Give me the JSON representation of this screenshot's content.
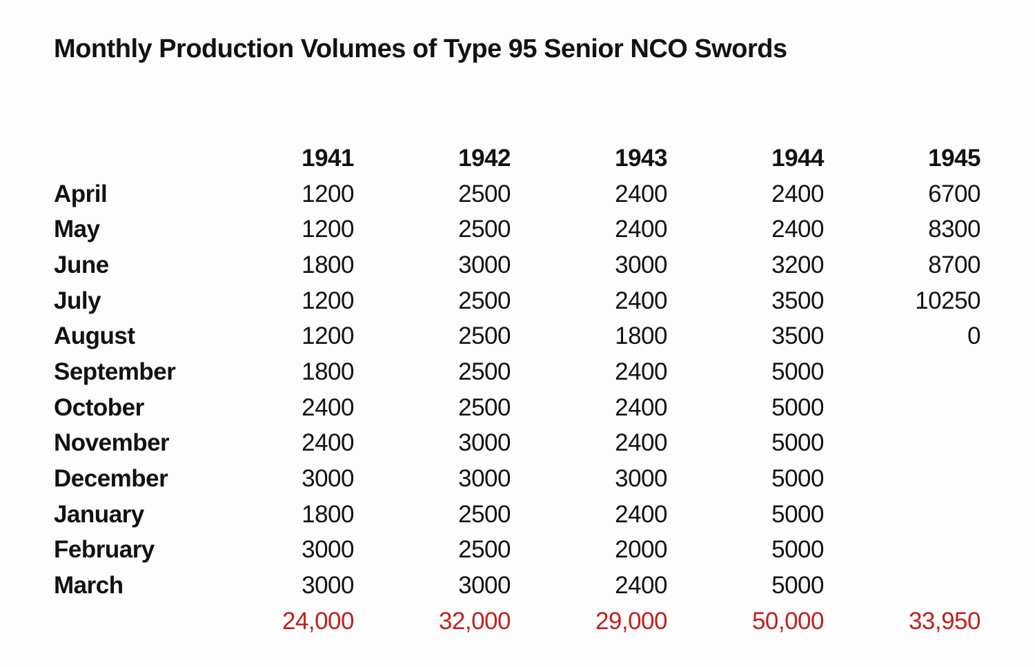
{
  "title": "Monthly Production Volumes of Type 95 Senior NCO Swords",
  "colors": {
    "total_text": "#c1201d",
    "body_text": "#121212",
    "background": "#fdfdfd"
  },
  "table": {
    "year_headers": [
      "1941",
      "1942",
      "1943",
      "1944",
      "1945"
    ],
    "rows": [
      {
        "month": "April",
        "values": [
          "1200",
          "2500",
          "2400",
          "2400",
          "6700"
        ]
      },
      {
        "month": "May",
        "values": [
          "1200",
          "2500",
          "2400",
          "2400",
          "8300"
        ]
      },
      {
        "month": "June",
        "values": [
          "1800",
          "3000",
          "3000",
          "3200",
          "8700"
        ]
      },
      {
        "month": "July",
        "values": [
          "1200",
          "2500",
          "2400",
          "3500",
          "10250"
        ]
      },
      {
        "month": "August",
        "values": [
          "1200",
          "2500",
          "1800",
          "3500",
          "0"
        ]
      },
      {
        "month": "September",
        "values": [
          "1800",
          "2500",
          "2400",
          "5000",
          ""
        ]
      },
      {
        "month": "October",
        "values": [
          "2400",
          "2500",
          "2400",
          "5000",
          ""
        ]
      },
      {
        "month": "November",
        "values": [
          "2400",
          "3000",
          "2400",
          "5000",
          ""
        ]
      },
      {
        "month": "December",
        "values": [
          "3000",
          "3000",
          "3000",
          "5000",
          ""
        ]
      },
      {
        "month": "January",
        "values": [
          "1800",
          "2500",
          "2400",
          "5000",
          ""
        ]
      },
      {
        "month": "February",
        "values": [
          "3000",
          "2500",
          "2000",
          "5000",
          ""
        ]
      },
      {
        "month": "March",
        "values": [
          "3000",
          "3000",
          "2400",
          "5000",
          ""
        ]
      }
    ],
    "totals": [
      "24,000",
      "32,000",
      "29,000",
      "50,000",
      "33,950"
    ]
  }
}
